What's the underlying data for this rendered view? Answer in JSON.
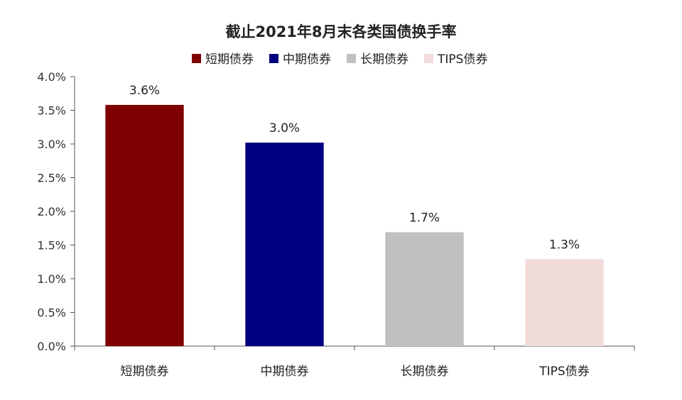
{
  "chart_data": {
    "type": "bar",
    "title": "截止2021年8月末各类国债换手率",
    "xlabel": "",
    "ylabel": "",
    "ylim": [
      0,
      4.0
    ],
    "yticks": [
      0.0,
      0.5,
      1.0,
      1.5,
      2.0,
      2.5,
      3.0,
      3.5,
      4.0
    ],
    "ytick_labels": [
      "0.0%",
      "0.5%",
      "1.0%",
      "1.5%",
      "2.0%",
      "2.5%",
      "3.0%",
      "3.5%",
      "4.0%"
    ],
    "categories": [
      "短期债券",
      "中期债券",
      "长期债券",
      "TIPS债券"
    ],
    "values": [
      3.58,
      3.02,
      1.69,
      1.29
    ],
    "data_labels": [
      "3.6%",
      "3.0%",
      "1.7%",
      "1.3%"
    ],
    "colors": [
      "#7f0000",
      "#000080",
      "#c0c0c0",
      "#f2dcdb"
    ],
    "legend": {
      "placement": "top",
      "entries": [
        "短期债券",
        "中期债券",
        "长期债券",
        "TIPS债券"
      ]
    },
    "grid": false
  }
}
